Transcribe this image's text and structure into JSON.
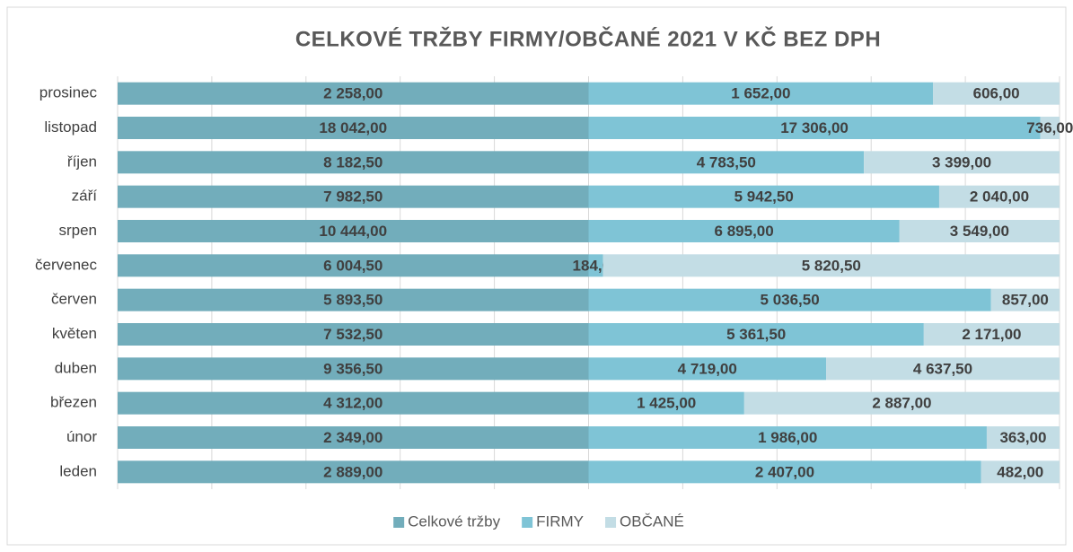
{
  "chart_data": {
    "type": "bar",
    "orientation": "horizontal",
    "stacking": "percent",
    "title": "CELKOVÉ TRŽBY FIRMY/OBČANÉ 2021 V KČ BEZ DPH",
    "categories": [
      "prosinec",
      "listopad",
      "říjen",
      "září",
      "srpen",
      "červenec",
      "červen",
      "květen",
      "duben",
      "březen",
      "únor",
      "leden"
    ],
    "series": [
      {
        "name": "Celkové tržby",
        "color": "#72adbb",
        "values": [
          2258,
          18042,
          8182.5,
          7982.5,
          10444,
          6004.5,
          5893.5,
          7532.5,
          9356.5,
          4312,
          2349,
          2889
        ],
        "value_labels": [
          "2 258,00",
          "18 042,00",
          "8 182,50",
          "7 982,50",
          "10 444,00",
          "6 004,50",
          "5 893,50",
          "7 532,50",
          "9 356,50",
          "4 312,00",
          "2 349,00",
          "2 889,00"
        ]
      },
      {
        "name": "FIRMY",
        "color": "#7fc4d6",
        "values": [
          1652,
          17306,
          4783.5,
          5942.5,
          6895,
          184,
          5036.5,
          5361.5,
          4719,
          1425,
          1986,
          2407
        ],
        "value_labels": [
          "1 652,00",
          "17 306,00",
          "4 783,50",
          "5 942,50",
          "6 895,00",
          "184,00",
          "5 036,50",
          "5 361,50",
          "4 719,00",
          "1 425,00",
          "1 986,00",
          "2 407,00"
        ]
      },
      {
        "name": "OBČANÉ",
        "color": "#c3dde5",
        "values": [
          606,
          736,
          3399,
          2040,
          3549,
          5820.5,
          857,
          2171,
          4637.5,
          2887,
          363,
          482
        ],
        "value_labels": [
          "606,00",
          "736,00",
          "3 399,00",
          "2 040,00",
          "3 549,00",
          "5 820,50",
          "857,00",
          "2 171,00",
          "4 637,50",
          "2 887,00",
          "363,00",
          "482,00"
        ]
      }
    ],
    "xlim": [
      0,
      100
    ],
    "xticks": [
      0,
      10,
      20,
      30,
      40,
      50,
      60,
      70,
      80,
      90,
      100
    ],
    "grid": true,
    "legend": "bottom"
  }
}
